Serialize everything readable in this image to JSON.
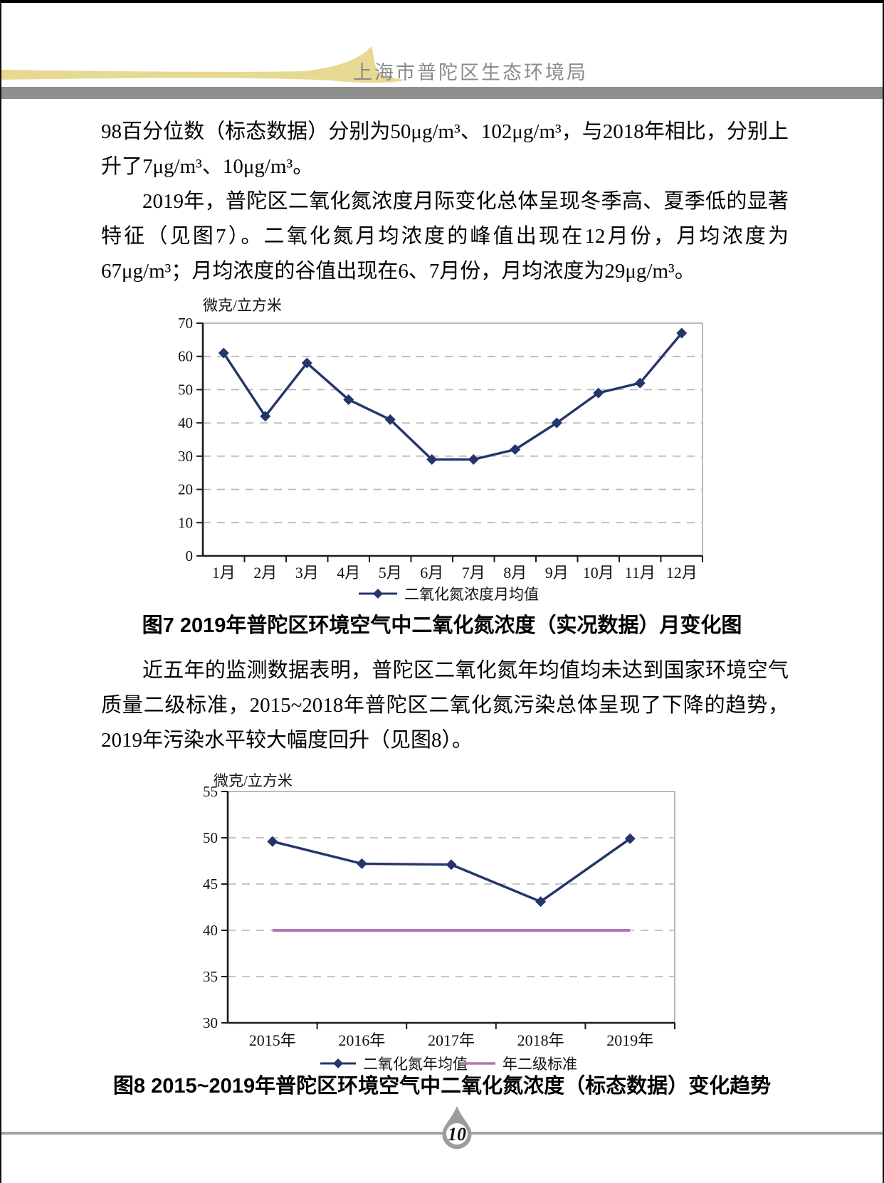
{
  "header": {
    "org_name": "上海市普陀区生态环境局"
  },
  "content": {
    "paragraphs": [
      "98百分位数（标态数据）分别为50μg/m³、102μg/m³，与2018年相比，分别上升了7μg/m³、10μg/m³。",
      "2019年，普陀区二氧化氮浓度月际变化总体呈现冬季高、夏季低的显著特征（见图7）。二氧化氮月均浓度的峰值出现在12月份，月均浓度为67μg/m³；月均浓度的谷值出现在6、7月份，月均浓度为29μg/m³。",
      "近五年的监测数据表明，普陀区二氧化氮年均值均未达到国家环境空气质量二级标准，2015~2018年普陀区二氧化氮污染总体呈现了下降的趋势，2019年污染水平较大幅度回升（见图8）。"
    ],
    "figure7_caption": "图7  2019年普陀区环境空气中二氧化氮浓度（实况数据）月变化图",
    "figure8_caption": "图8  2015~2019年普陀区环境空气中二氧化氮浓度（标态数据）变化趋势"
  },
  "chart_data": [
    {
      "type": "line",
      "title": "",
      "ylabel": "微克/立方米",
      "xlabel": "",
      "categories": [
        "1月",
        "2月",
        "3月",
        "4月",
        "5月",
        "6月",
        "7月",
        "8月",
        "9月",
        "10月",
        "11月",
        "12月"
      ],
      "series": [
        {
          "name": "二氧化氮浓度月均值",
          "values": [
            61,
            42,
            58,
            47,
            41,
            29,
            29,
            32,
            40,
            49,
            52,
            67
          ],
          "color": "#24356b",
          "marker": "diamond"
        }
      ],
      "ylim": [
        0,
        70
      ],
      "ytick_step": 10,
      "grid": "horizontal-dashed",
      "legend_position": "bottom"
    },
    {
      "type": "line",
      "title": "",
      "ylabel": "微克/立方米",
      "xlabel": "",
      "categories": [
        "2015年",
        "2016年",
        "2017年",
        "2018年",
        "2019年"
      ],
      "series": [
        {
          "name": "二氧化氮年均值",
          "values": [
            49.6,
            47.2,
            47.1,
            43.1,
            49.9
          ],
          "color": "#24356b",
          "marker": "diamond"
        },
        {
          "name": "年二级标准",
          "values": [
            40,
            40,
            40,
            40,
            40
          ],
          "color": "#b277b4",
          "marker": "none"
        }
      ],
      "ylim": [
        30,
        55
      ],
      "ytick_step": 5,
      "grid": "horizontal-dashed",
      "legend_position": "bottom"
    }
  ],
  "footer": {
    "page_number": "10"
  },
  "colors": {
    "series_navy": "#24356b",
    "standard_line_pink": "#b277b4",
    "header_swoosh_yellow": "#e6da93",
    "header_bar_gray": "#8f8f8f",
    "header_text_gray": "#8a8a8a",
    "footer_line_gray": "#a2a2a2",
    "page_number_gold": "#c4a72b",
    "gridline_gray": "#b3b3b3"
  }
}
